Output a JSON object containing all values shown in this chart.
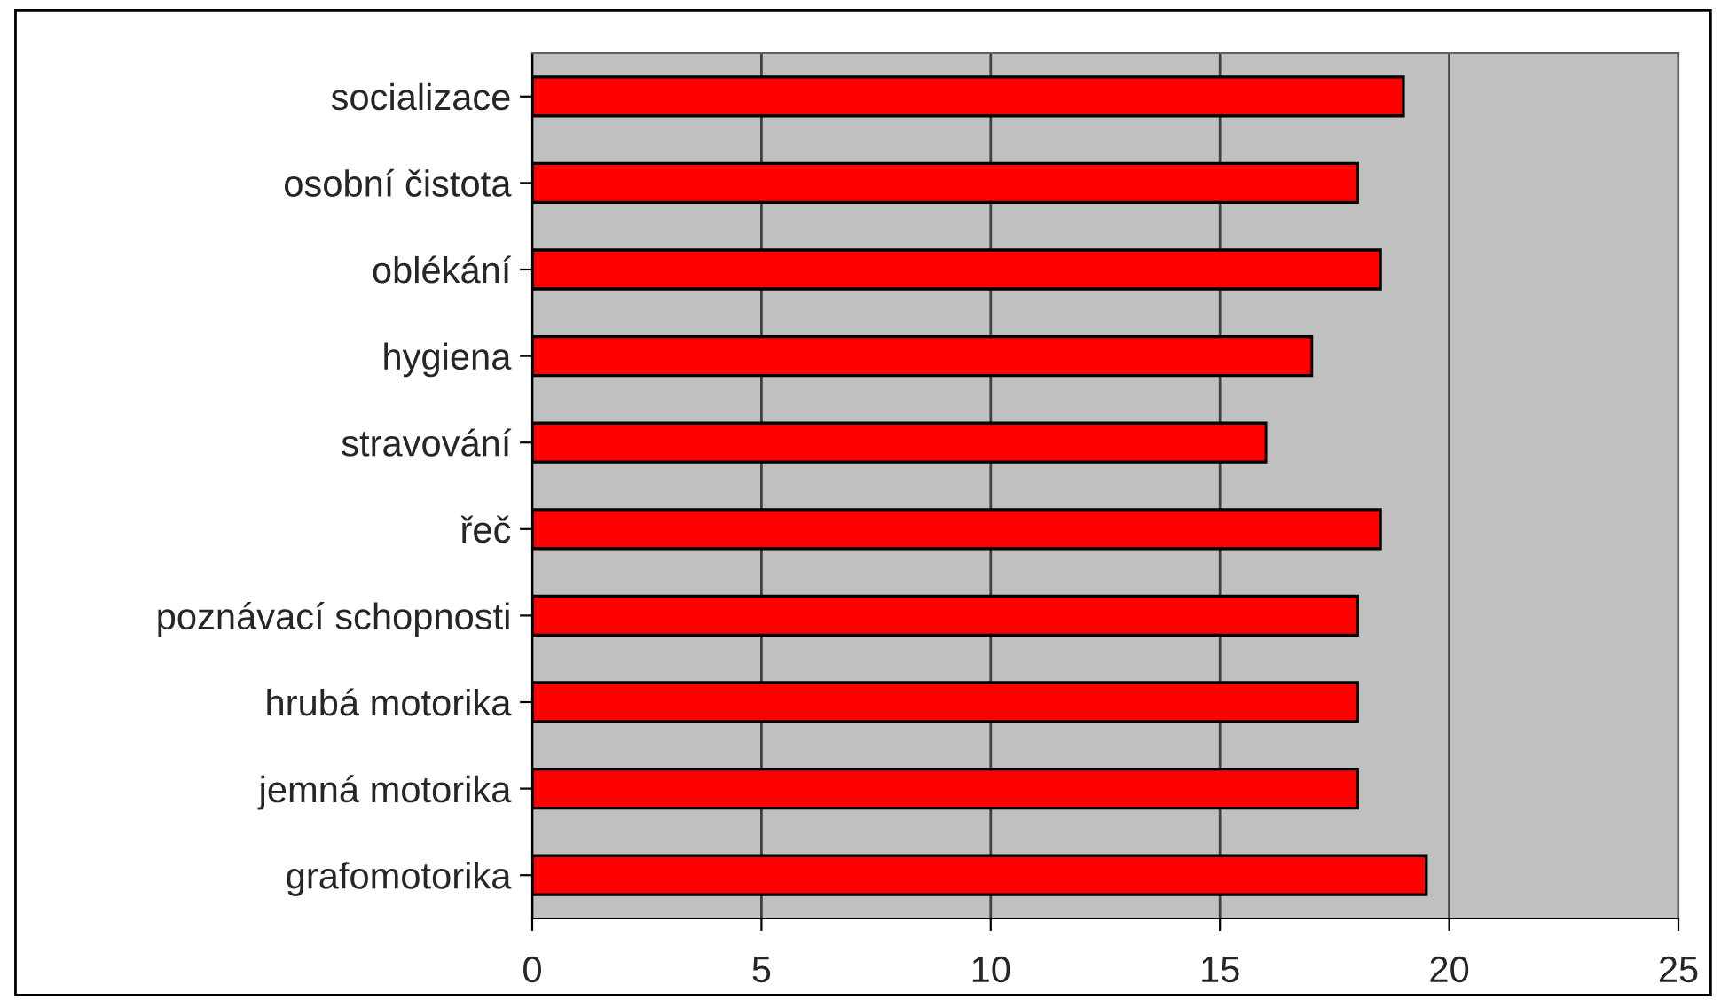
{
  "chart_data": {
    "type": "bar",
    "orientation": "horizontal",
    "categories": [
      "socializace",
      "osobní čistota",
      "oblékání",
      "hygiena",
      "stravování",
      "řeč",
      "poznávací schopnosti",
      "hrubá motorika",
      "jemná motorika",
      "grafomotorika"
    ],
    "values": [
      19,
      18,
      18.5,
      17,
      16,
      18.5,
      18,
      18,
      18,
      19.5
    ],
    "color": "#ff0000",
    "xlim": [
      0,
      25
    ],
    "xticks": [
      0,
      5,
      10,
      15,
      20,
      25
    ],
    "grid": "x",
    "legend": false
  }
}
